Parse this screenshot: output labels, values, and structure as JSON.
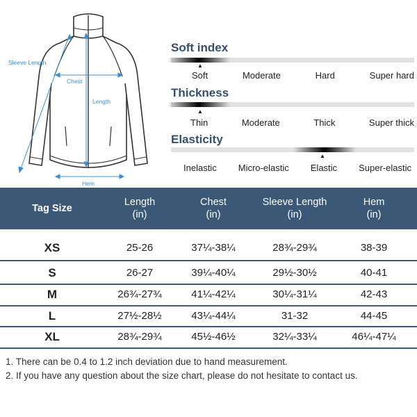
{
  "diagram": {
    "labels": {
      "sleeve_length": "Sleeve Length",
      "chest": "Chest",
      "length": "Length",
      "hem": "Hem"
    }
  },
  "scales": [
    {
      "title": "Soft index",
      "options": [
        "Soft",
        "Moderate",
        "Hard",
        "Super hard"
      ],
      "selected": "Soft",
      "selected_index": 0
    },
    {
      "title": "Thickness",
      "options": [
        "Thin",
        "Moderate",
        "Thick",
        "Super thick"
      ],
      "selected": "Thin",
      "selected_index": 0
    },
    {
      "title": "Elasticity",
      "options": [
        "Inelastic",
        "Micro-elastic",
        "Elastic",
        "Super-elastic"
      ],
      "selected": "Elastic",
      "selected_index": 2
    }
  ],
  "size_table": {
    "headers": {
      "tag_size": "Tag Size",
      "length": "Length",
      "chest": "Chest",
      "sleeve_length": "Sleeve Length",
      "hem": "Hem",
      "unit": "(in)"
    },
    "rows": [
      {
        "size": "XS",
        "length": "25-26",
        "chest": "37¼-38¼",
        "sleeve": "28¾-29¾",
        "hem": "38-39"
      },
      {
        "size": "S",
        "length": "26-27",
        "chest": "39¼-40¼",
        "sleeve": "29½-30½",
        "hem": "40-41"
      },
      {
        "size": "M",
        "length": "26¾-27¾",
        "chest": "41¼-42¼",
        "sleeve": "30¼-31¼",
        "hem": "42-43"
      },
      {
        "size": "L",
        "length": "27½-28½",
        "chest": "43¼-44¼",
        "sleeve": "31-32",
        "hem": "44-45"
      },
      {
        "size": "XL",
        "length": "28¾-29¾",
        "chest": "45½-46½",
        "sleeve": "32¼-33¼",
        "hem": "46¼-47¼"
      }
    ],
    "header_color": "#3c5877"
  },
  "notes": [
    "1. There can be 0.4 to 1.2 inch deviation due to hand measurement.",
    "2. If you have any question about the size chart, please do not hesitate to contact us."
  ]
}
